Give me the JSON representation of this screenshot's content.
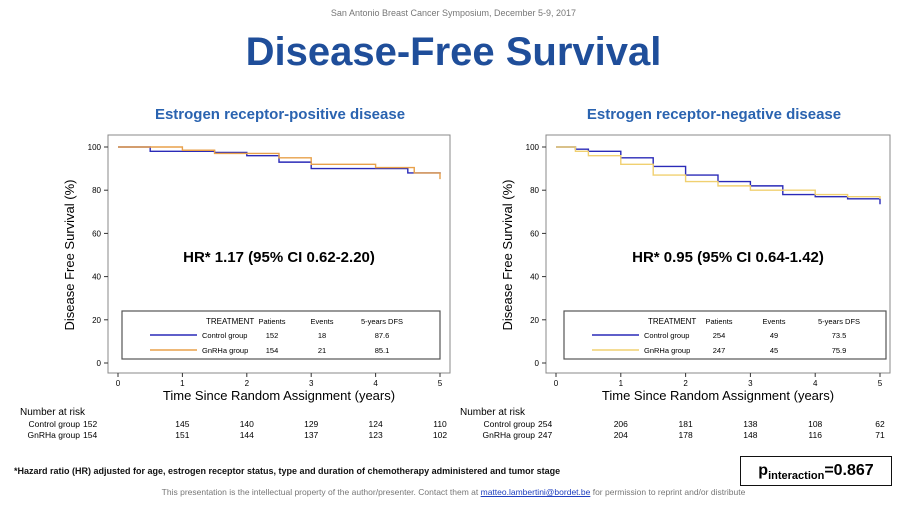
{
  "header": {
    "conference": "San Antonio Breast Cancer Symposium, December 5-9, 2017",
    "title": "Disease-Free Survival"
  },
  "colors": {
    "control": "#2a2ab8",
    "gnrha": "#e8a04a",
    "gnrha_neg": "#f0d070",
    "title": "#1f4e9a"
  },
  "footnote": "*Hazard ratio (HR) adjusted for age, estrogen receptor status, type and duration of chemotherapy administered and tumor stage",
  "p_interaction": {
    "label": "p",
    "sub": "interaction",
    "value": "=0.867"
  },
  "copyright": {
    "pre": "This presentation is the intellectual property of the author/presenter. Contact them at ",
    "email": "matteo.lambertini@bordet.be",
    "post": " for permission to reprint and/or distribute"
  },
  "chart_data": [
    {
      "type": "line",
      "title": "Estrogen receptor-positive disease",
      "xlabel": "Time Since Random Assignment (years)",
      "ylabel": "Disease Free Survival (%)",
      "xlim": [
        0,
        5
      ],
      "ylim": [
        0,
        100
      ],
      "xticks": [
        "0",
        "1",
        "2",
        "3",
        "4",
        "5"
      ],
      "yticks": [
        "0",
        "20",
        "40",
        "60",
        "80",
        "100"
      ],
      "annotation": "HR* 1.17 (95% CI 0.62-2.20)",
      "legend": {
        "title": "TREATMENT",
        "columns": [
          "Patients",
          "Events",
          "5-years DFS"
        ],
        "rows": [
          [
            "Control group",
            "152",
            "18",
            "87.6"
          ],
          [
            "GnRHa group",
            "154",
            "21",
            "85.1"
          ]
        ]
      },
      "series": [
        {
          "name": "Control group",
          "x": [
            0,
            0.5,
            1.5,
            2,
            2.5,
            3,
            4,
            4.5,
            5
          ],
          "y": [
            100,
            98,
            97.5,
            96,
            93,
            90,
            90,
            88,
            87.6
          ]
        },
        {
          "name": "GnRHa group",
          "x": [
            0,
            1,
            1.5,
            2.5,
            3,
            4,
            4.6,
            5
          ],
          "y": [
            100,
            98.5,
            97,
            95,
            92,
            90.5,
            88,
            85.1
          ]
        }
      ],
      "risk": {
        "label": "Number at risk",
        "rows": [
          [
            "Control group",
            "152",
            "145",
            "140",
            "129",
            "124",
            "110"
          ],
          [
            "GnRHa group",
            "154",
            "151",
            "144",
            "137",
            "123",
            "102"
          ]
        ]
      }
    },
    {
      "type": "line",
      "title": "Estrogen receptor-negative disease",
      "xlabel": "Time Since Random Assignment (years)",
      "ylabel": "Disease Free Survival (%)",
      "xlim": [
        0,
        5
      ],
      "ylim": [
        0,
        100
      ],
      "xticks": [
        "0",
        "1",
        "2",
        "3",
        "4",
        "5"
      ],
      "yticks": [
        "0",
        "20",
        "40",
        "60",
        "80",
        "100"
      ],
      "annotation": "HR* 0.95 (95% CI 0.64-1.42)",
      "legend": {
        "title": "TREATMENT",
        "columns": [
          "Patients",
          "Events",
          "5-years DFS"
        ],
        "rows": [
          [
            "Control group",
            "254",
            "49",
            "73.5"
          ],
          [
            "GnRHa group",
            "247",
            "45",
            "75.9"
          ]
        ]
      },
      "series": [
        {
          "name": "Control group",
          "x": [
            0,
            0.3,
            0.5,
            1,
            1.5,
            2,
            2.5,
            3,
            3.5,
            4,
            4.5,
            5
          ],
          "y": [
            100,
            99,
            98,
            95,
            91,
            87,
            84,
            82,
            78,
            77,
            76,
            73.5
          ]
        },
        {
          "name": "GnRHa group",
          "x": [
            0,
            0.3,
            0.5,
            1,
            1.5,
            2,
            2.5,
            3,
            4,
            4.5,
            5
          ],
          "y": [
            100,
            98,
            96,
            92,
            87,
            84,
            82,
            80,
            78,
            77,
            75.9
          ]
        }
      ],
      "risk": {
        "label": "Number at risk",
        "rows": [
          [
            "Control group",
            "254",
            "206",
            "181",
            "138",
            "108",
            "62"
          ],
          [
            "GnRHa group",
            "247",
            "204",
            "178",
            "148",
            "116",
            "71"
          ]
        ]
      }
    }
  ]
}
